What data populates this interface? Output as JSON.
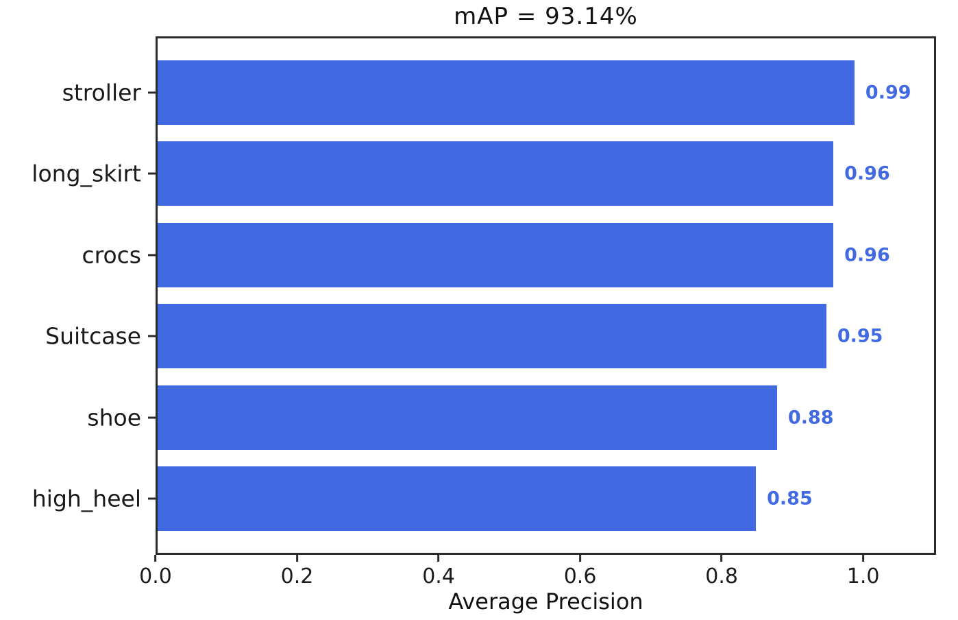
{
  "chart_data": {
    "type": "bar",
    "orientation": "horizontal",
    "title": "mAP = 93.14%",
    "xlabel": "Average Precision",
    "ylabel": "",
    "categories": [
      "stroller",
      "long_skirt",
      "crocs",
      "Suitcase",
      "shoe",
      "high_heel"
    ],
    "values": [
      0.99,
      0.96,
      0.96,
      0.95,
      0.88,
      0.85
    ],
    "value_labels": [
      "0.99",
      "0.96",
      "0.96",
      "0.95",
      "0.88",
      "0.85"
    ],
    "xlim": [
      0,
      1.103
    ],
    "xticks": [
      0.0,
      0.2,
      0.4,
      0.6,
      0.8,
      1.0
    ],
    "xtick_labels": [
      "0.0",
      "0.2",
      "0.4",
      "0.6",
      "0.8",
      "1.0"
    ],
    "bar_color": "#4169E1",
    "value_label_color": "#4169E1",
    "grid": false,
    "legend": null
  }
}
